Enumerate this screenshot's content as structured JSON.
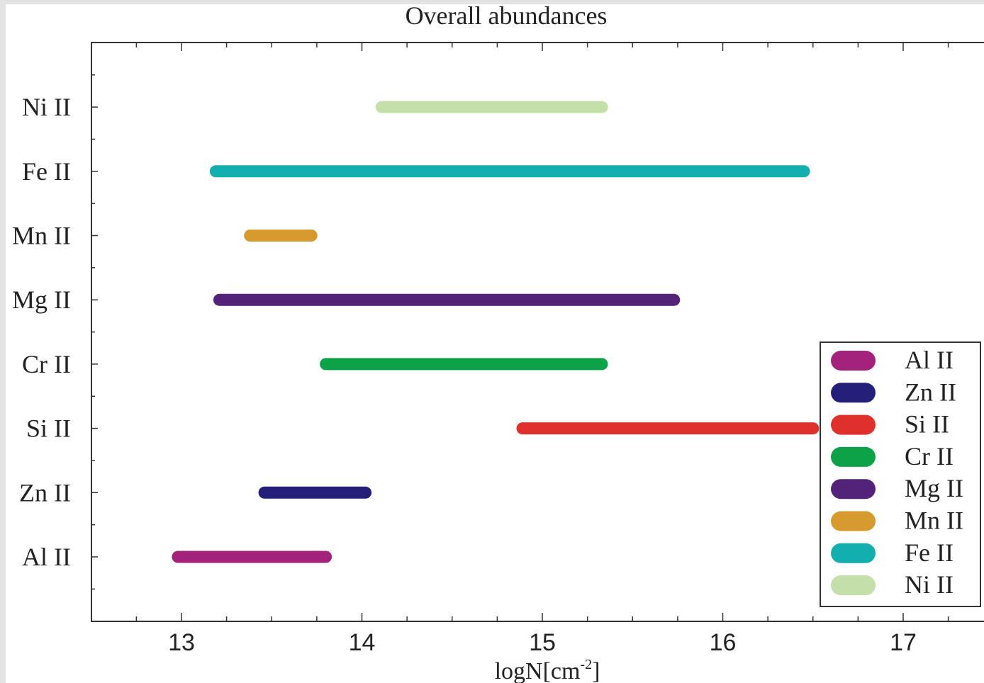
{
  "chart_data": {
    "type": "range-bar",
    "title": "Overall abundances",
    "xlabel": "logN[cm",
    "xlabel_sup": "-2",
    "xlabel_end": "]",
    "ylabel": "",
    "xlim": [
      12.5,
      17.45
    ],
    "xticks": [
      13,
      14,
      15,
      16,
      17
    ],
    "xtick_labels": [
      "13",
      "14",
      "15",
      "16",
      "17"
    ],
    "legend_position": "lower-right",
    "series": [
      {
        "name": "Al II",
        "start": 12.98,
        "end": 13.8,
        "color": "#a3227c"
      },
      {
        "name": "Zn II",
        "start": 13.46,
        "end": 14.02,
        "color": "#24207a"
      },
      {
        "name": "Si II",
        "start": 14.89,
        "end": 16.5,
        "color": "#e0302c"
      },
      {
        "name": "Cr II",
        "start": 13.8,
        "end": 15.33,
        "color": "#0ba248"
      },
      {
        "name": "Mg II",
        "start": 13.21,
        "end": 15.73,
        "color": "#53237a"
      },
      {
        "name": "Mn II",
        "start": 13.38,
        "end": 13.72,
        "color": "#d69a2f"
      },
      {
        "name": "Fe II",
        "start": 13.19,
        "end": 16.45,
        "color": "#13afae"
      },
      {
        "name": "Ni II",
        "start": 14.11,
        "end": 15.33,
        "color": "#c4dfa7"
      }
    ]
  }
}
